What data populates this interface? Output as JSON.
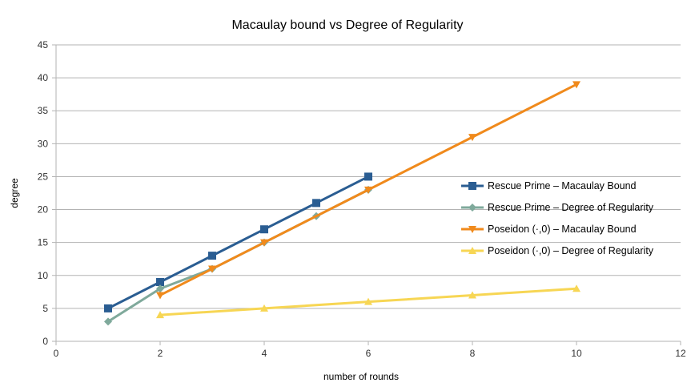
{
  "chart_data": {
    "type": "line",
    "title": "Macaulay bound vs Degree of Regularity",
    "xlabel": "number of rounds",
    "ylabel": "degree",
    "xlim": [
      0,
      12
    ],
    "ylim": [
      0,
      45
    ],
    "x_ticks": [
      0,
      2,
      4,
      6,
      8,
      10,
      12
    ],
    "y_ticks": [
      0,
      5,
      10,
      15,
      20,
      25,
      30,
      35,
      40,
      45
    ],
    "grid": "horizontal",
    "legend_position": "right",
    "series": [
      {
        "name": "Rescue Prime – Macaulay Bound",
        "color": "#2a5d92",
        "marker": "square",
        "x": [
          1,
          2,
          3,
          4,
          5,
          6
        ],
        "y": [
          5,
          9,
          13,
          17,
          21,
          25
        ]
      },
      {
        "name": "Rescue Prime – Degree of Regularity",
        "color": "#7fa99b",
        "marker": "diamond",
        "x": [
          1,
          2,
          3,
          4,
          5,
          6
        ],
        "y": [
          3,
          8,
          11,
          15,
          19,
          23
        ]
      },
      {
        "name": "Poseidon (·,0) – Macaulay Bound",
        "color": "#f08a1c",
        "marker": "triangle-down",
        "x": [
          2,
          3,
          4,
          6,
          8,
          10
        ],
        "y": [
          7,
          11,
          15,
          23,
          31,
          39
        ]
      },
      {
        "name": "Poseidon (·,0) – Degree of Regularity",
        "color": "#f7d654",
        "marker": "triangle-up",
        "x": [
          2,
          4,
          6,
          8,
          10
        ],
        "y": [
          4,
          5,
          6,
          7,
          8
        ]
      }
    ]
  }
}
